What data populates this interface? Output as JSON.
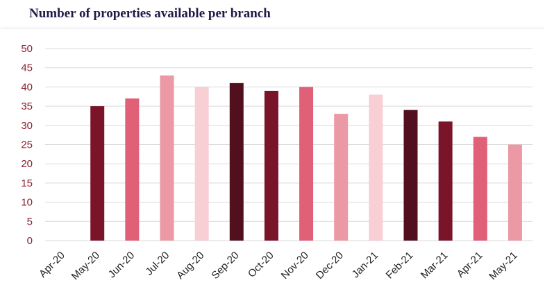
{
  "chart_data": {
    "type": "bar",
    "title": "Number of properties available per branch",
    "categories": [
      "Apr-20",
      "May-20",
      "Jun-20",
      "Jul-20",
      "Aug-20",
      "Sep-20",
      "Oct-20",
      "Nov-20",
      "Dec-20",
      "Jan-21",
      "Feb-21",
      "Mar-21",
      "Apr-21",
      "May-21"
    ],
    "values": [
      0,
      35,
      37,
      43,
      40,
      41,
      39,
      40,
      33,
      38,
      34,
      31,
      27,
      25
    ],
    "bar_colors": [
      "#7a1428",
      "#7a1428",
      "#e06077",
      "#ec99a6",
      "#f7cfd5",
      "#520f1d",
      "#7a1428",
      "#e06077",
      "#ec99a6",
      "#f7cfd5",
      "#520f1d",
      "#7a1428",
      "#e06077",
      "#ec99a6"
    ],
    "ylim": [
      0,
      50
    ],
    "yticks": [
      0,
      5,
      10,
      15,
      20,
      25,
      30,
      35,
      40,
      45,
      50
    ],
    "xlabel": "",
    "ylabel": "",
    "grid": true,
    "legend": "none"
  }
}
